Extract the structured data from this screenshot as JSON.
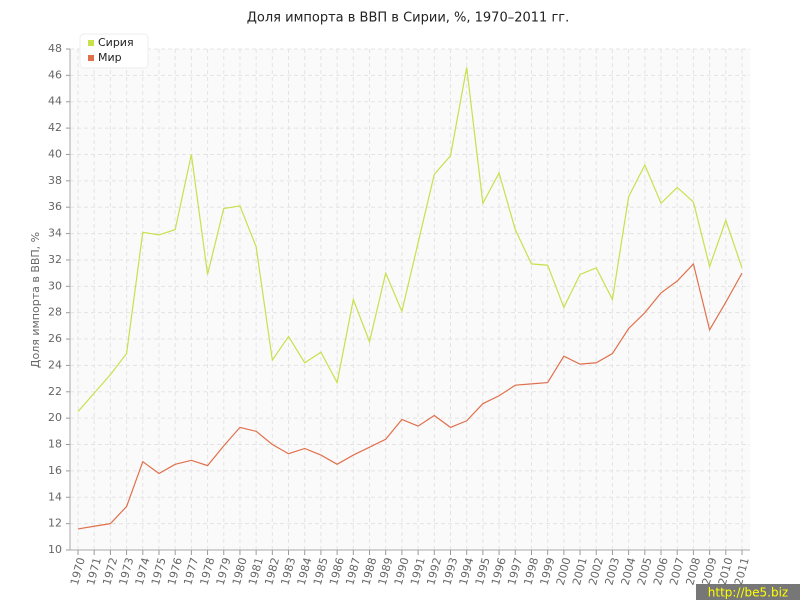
{
  "chart_data": {
    "type": "line",
    "title": "Доля импорта в ВВП в Сирии, %, 1970–2011 гг.",
    "y_label": "Доля импорта в ВВП, %",
    "watermark": "http://be5.biz",
    "categories": [
      "1970",
      "1971",
      "1972",
      "1973",
      "1974",
      "1975",
      "1976",
      "1977",
      "1978",
      "1979",
      "1980",
      "1981",
      "1982",
      "1983",
      "1984",
      "1985",
      "1986",
      "1987",
      "1988",
      "1989",
      "1990",
      "1991",
      "1992",
      "1993",
      "1994",
      "1995",
      "1996",
      "1997",
      "1998",
      "1999",
      "2000",
      "2001",
      "2002",
      "2003",
      "2004",
      "2005",
      "2006",
      "2007",
      "2008",
      "2009",
      "2010",
      "2011"
    ],
    "series": [
      {
        "name": "Сирия",
        "color": "#c8e04c",
        "values": [
          20.5,
          21.9,
          23.3,
          24.9,
          34.1,
          33.9,
          34.3,
          40.0,
          30.9,
          35.9,
          36.1,
          33.0,
          24.4,
          26.2,
          24.2,
          25.0,
          22.7,
          29.0,
          25.8,
          31.0,
          28.1,
          33.3,
          38.5,
          39.9,
          46.6,
          36.3,
          38.6,
          34.3,
          31.7,
          31.6,
          28.4,
          30.9,
          31.4,
          29.0,
          36.8,
          39.2,
          36.3,
          37.5,
          36.4,
          31.5,
          35.0,
          31.4
        ]
      },
      {
        "name": "Мир",
        "color": "#e0704c",
        "values": [
          11.6,
          11.8,
          12.0,
          13.3,
          16.7,
          15.8,
          16.5,
          16.8,
          16.4,
          17.9,
          19.3,
          19.0,
          18.0,
          17.3,
          17.7,
          17.2,
          16.5,
          17.2,
          17.8,
          18.4,
          19.9,
          19.4,
          20.2,
          19.3,
          19.8,
          21.1,
          21.7,
          22.5,
          22.6,
          22.7,
          24.7,
          24.1,
          24.2,
          24.9,
          26.8,
          28.0,
          29.5,
          30.4,
          31.7,
          26.7,
          28.8,
          31.0
        ]
      }
    ],
    "ylim": [
      10,
      48
    ],
    "yticks": [
      10,
      12,
      14,
      16,
      18,
      20,
      22,
      24,
      26,
      28,
      30,
      32,
      34,
      36,
      38,
      40,
      42,
      44,
      46,
      48
    ],
    "grid": true,
    "legend": "top-left"
  }
}
